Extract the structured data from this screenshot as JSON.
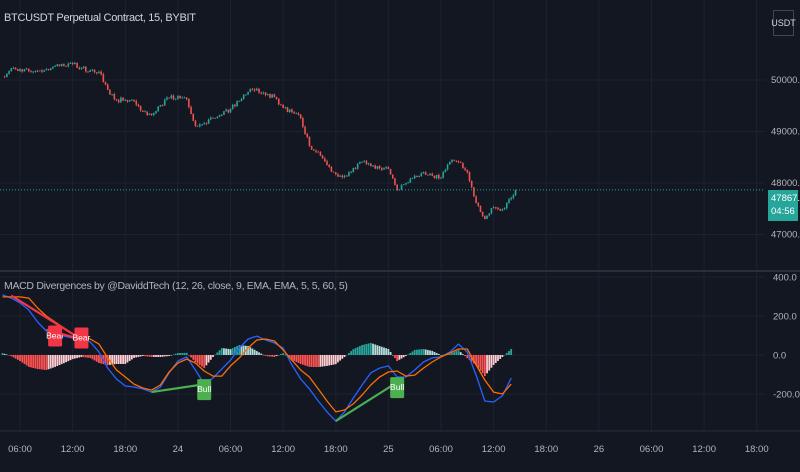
{
  "header": {
    "title": "BTCUSDT Perpetual Contract, 15, BYBIT",
    "currency": "USDT"
  },
  "indicator": {
    "title": "MACD Divergences by @DaviddTech (12, 26, close, 9, EMA, EMA, 5, 5, 60, 5)"
  },
  "last_price": {
    "value": "47867.0",
    "countdown": "04:56"
  },
  "colors": {
    "background": "#131722",
    "up": "#26a69a",
    "down": "#ef5350",
    "macd": "#2962ff",
    "signal": "#ff6d00",
    "bear": "#f23645",
    "bull": "#4caf50",
    "grid": "#1e222d"
  },
  "chart_data": [
    {
      "type": "candlestick",
      "title": "BTCUSDT Perpetual Contract, 15, BYBIT",
      "interval": "15",
      "y_ticks": [
        "50000.0",
        "49000.0",
        "48000.0",
        "47000.0"
      ],
      "ylim": [
        46300,
        51500
      ],
      "grid": true,
      "x": [
        "23 04:00",
        "23 05:00",
        "23 06:00",
        "23 07:00",
        "23 08:00",
        "23 09:00",
        "23 10:00",
        "23 11:00",
        "23 12:00",
        "23 13:00",
        "23 14:00",
        "23 15:00",
        "23 16:00",
        "23 17:00",
        "23 18:00",
        "23 19:00",
        "23 20:00",
        "23 21:00",
        "23 22:00",
        "23 23:00",
        "24 00:00",
        "24 01:00",
        "24 02:00",
        "24 03:00",
        "24 04:00",
        "24 05:00",
        "24 06:00",
        "24 07:00",
        "24 08:00",
        "24 09:00",
        "24 10:00",
        "24 11:00",
        "24 12:00",
        "24 13:00",
        "24 14:00",
        "24 15:00",
        "24 16:00",
        "24 17:00",
        "24 18:00",
        "24 19:00",
        "24 20:00",
        "24 21:00",
        "24 22:00",
        "24 23:00",
        "25 00:00",
        "25 01:00",
        "25 02:00",
        "25 03:00",
        "25 04:00",
        "25 05:00",
        "25 06:00",
        "25 07:00",
        "25 08:00",
        "25 09:00",
        "25 10:00",
        "25 11:00",
        "25 12:00",
        "25 13:00",
        "25 14:00",
        "25 14:30"
      ],
      "close": [
        50060,
        50230,
        50210,
        50170,
        50170,
        50210,
        50270,
        50270,
        50310,
        50230,
        50190,
        50160,
        49810,
        49610,
        49610,
        49590,
        49380,
        49320,
        49510,
        49650,
        49690,
        49630,
        49110,
        49160,
        49260,
        49320,
        49440,
        49590,
        49770,
        49830,
        49710,
        49670,
        49460,
        49380,
        49260,
        48720,
        48600,
        48350,
        48170,
        48140,
        48290,
        48410,
        48330,
        48290,
        48270,
        47860,
        48000,
        48140,
        48210,
        48140,
        48100,
        48410,
        48410,
        48210,
        47610,
        47300,
        47530,
        47490,
        47710,
        47867
      ]
    },
    {
      "type": "line",
      "title": "MACD Divergences by @DaviddTech (12, 26, close, 9, EMA, EMA, 5, 5, 60, 5)",
      "y_ticks": [
        "400.0",
        "200.0",
        "0.0",
        "-200.0"
      ],
      "ylim": [
        -380,
        420
      ],
      "x_ticks": [
        "06:00",
        "12:00",
        "18:00",
        "24",
        "06:00",
        "12:00",
        "18:00",
        "25",
        "06:00",
        "12:00",
        "18:00",
        "26",
        "06:00",
        "12:00",
        "18:00"
      ],
      "x_tick_times": [
        "23 06:00",
        "23 12:00",
        "23 18:00",
        "24 00:00",
        "24 06:00",
        "24 12:00",
        "24 18:00",
        "25 00:00",
        "25 06:00",
        "25 12:00",
        "25 18:00",
        "26 00:00",
        "26 06:00",
        "26 12:00",
        "26 18:00"
      ],
      "x": [
        "23 04:00",
        "23 05:00",
        "23 06:00",
        "23 07:00",
        "23 08:00",
        "23 09:00",
        "23 10:00",
        "23 11:00",
        "23 12:00",
        "23 13:00",
        "23 14:00",
        "23 15:00",
        "23 16:00",
        "23 17:00",
        "23 18:00",
        "23 19:00",
        "23 20:00",
        "23 21:00",
        "23 22:00",
        "23 23:00",
        "24 00:00",
        "24 01:00",
        "24 02:00",
        "24 03:00",
        "24 04:00",
        "24 05:00",
        "24 06:00",
        "24 07:00",
        "24 08:00",
        "24 09:00",
        "24 10:00",
        "24 11:00",
        "24 12:00",
        "24 13:00",
        "24 14:00",
        "24 15:00",
        "24 16:00",
        "24 17:00",
        "24 18:00",
        "24 19:00",
        "24 20:00",
        "24 21:00",
        "24 22:00",
        "24 23:00",
        "25 00:00",
        "25 01:00",
        "25 02:00",
        "25 03:00",
        "25 04:00",
        "25 05:00",
        "25 06:00",
        "25 07:00",
        "25 08:00",
        "25 09:00",
        "25 10:00",
        "25 11:00",
        "25 12:00",
        "25 13:00",
        "25 14:00"
      ],
      "series": [
        {
          "key": "macd",
          "values": [
            308,
            292,
            267,
            231,
            169,
            123,
            108,
            97,
            87,
            82,
            67,
            15,
            -67,
            -123,
            -159,
            -164,
            -174,
            -190,
            -164,
            -92,
            -31,
            -10,
            -77,
            -149,
            -118,
            -72,
            -26,
            36,
            82,
            97,
            77,
            62,
            36,
            -51,
            -123,
            -174,
            -236,
            -292,
            -339,
            -292,
            -221,
            -154,
            -92,
            -67,
            -56,
            -113,
            -113,
            -77,
            -36,
            -15,
            -10,
            15,
            56,
            15,
            -103,
            -236,
            -241,
            -210,
            -118
          ]
        },
        {
          "key": "signal",
          "values": [
            298,
            298,
            298,
            292,
            241,
            200,
            169,
            139,
            108,
            92,
            82,
            56,
            -15,
            -77,
            -113,
            -149,
            -169,
            -180,
            -154,
            -87,
            -41,
            -21,
            -41,
            -82,
            -108,
            -108,
            -56,
            -15,
            36,
            77,
            82,
            72,
            26,
            -26,
            -77,
            -113,
            -174,
            -236,
            -292,
            -282,
            -251,
            -205,
            -154,
            -113,
            -87,
            -82,
            -108,
            -103,
            -67,
            -36,
            -10,
            10,
            31,
            31,
            -51,
            -128,
            -190,
            -200,
            -149
          ]
        }
      ],
      "histogram": "macd - signal",
      "divergences": [
        {
          "label": "Bear",
          "type": "bearish",
          "from": {
            "t": "23 05:00",
            "v": 305
          },
          "to": {
            "t": "23 13:00",
            "v": 80
          },
          "label_at": {
            "t": "23 10:00",
            "v": 100
          }
        },
        {
          "label": "Bear",
          "type": "bearish",
          "from": {
            "t": "23 09:00",
            "v": 130
          },
          "to": {
            "t": "23 13:00",
            "v": 80
          },
          "label_at": {
            "t": "23 13:00",
            "v": 90
          }
        },
        {
          "label": "Bull",
          "type": "bullish",
          "from": {
            "t": "23 21:00",
            "v": -190
          },
          "to": {
            "t": "24 03:00",
            "v": -150
          },
          "label_at": {
            "t": "24 03:00",
            "v": -175
          }
        },
        {
          "label": "Bull",
          "type": "bullish",
          "from": {
            "t": "24 18:00",
            "v": -339
          },
          "to": {
            "t": "25 01:00",
            "v": -140
          },
          "label_at": {
            "t": "25 01:00",
            "v": -165
          }
        }
      ]
    }
  ]
}
